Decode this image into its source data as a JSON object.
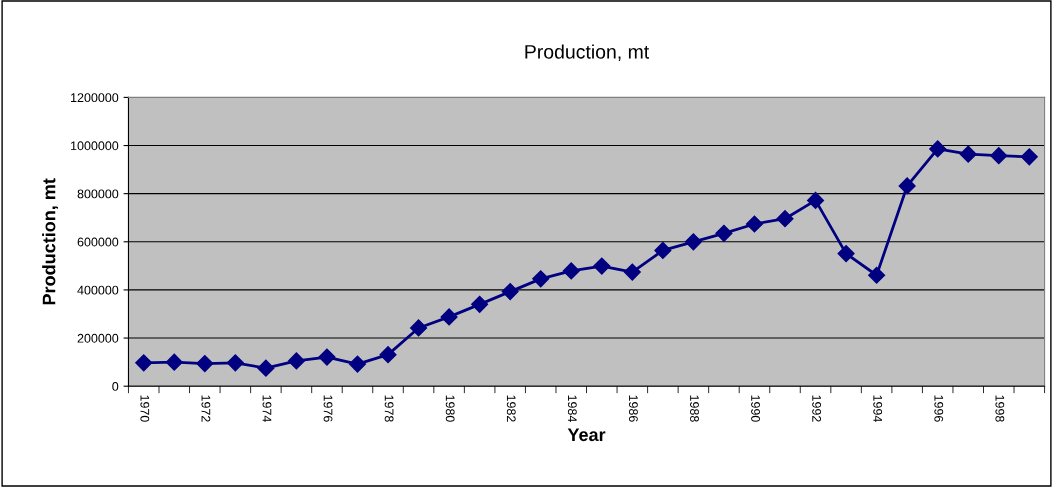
{
  "chart_data": {
    "type": "line",
    "title": "Production, mt",
    "xlabel": "Year",
    "ylabel": "Production, mt",
    "categories": [
      "1970",
      null,
      "1972",
      null,
      "1974",
      null,
      "1976",
      null,
      "1978",
      null,
      "1980",
      null,
      "1982",
      null,
      "1984",
      null,
      "1986",
      null,
      "1988",
      null,
      "1990",
      null,
      "1992",
      null,
      "1994",
      null,
      "1996",
      null,
      "1998",
      null
    ],
    "series": [
      {
        "color": "#000080",
        "values": [
          97000,
          100000,
          94000,
          97000,
          75000,
          105000,
          121000,
          92000,
          131000,
          242000,
          288000,
          340000,
          393000,
          446000,
          479000,
          499000,
          474000,
          564000,
          600000,
          635000,
          674000,
          696000,
          772000,
          551000,
          461000,
          832000,
          986000,
          964000,
          958000,
          953000
        ]
      }
    ],
    "ylim": [
      0,
      1200000
    ],
    "yticks": [
      0,
      200000,
      400000,
      600000,
      800000,
      1000000,
      1200000
    ],
    "grid": "y",
    "legend": false,
    "marker": "diamond",
    "line_style": "solid"
  }
}
